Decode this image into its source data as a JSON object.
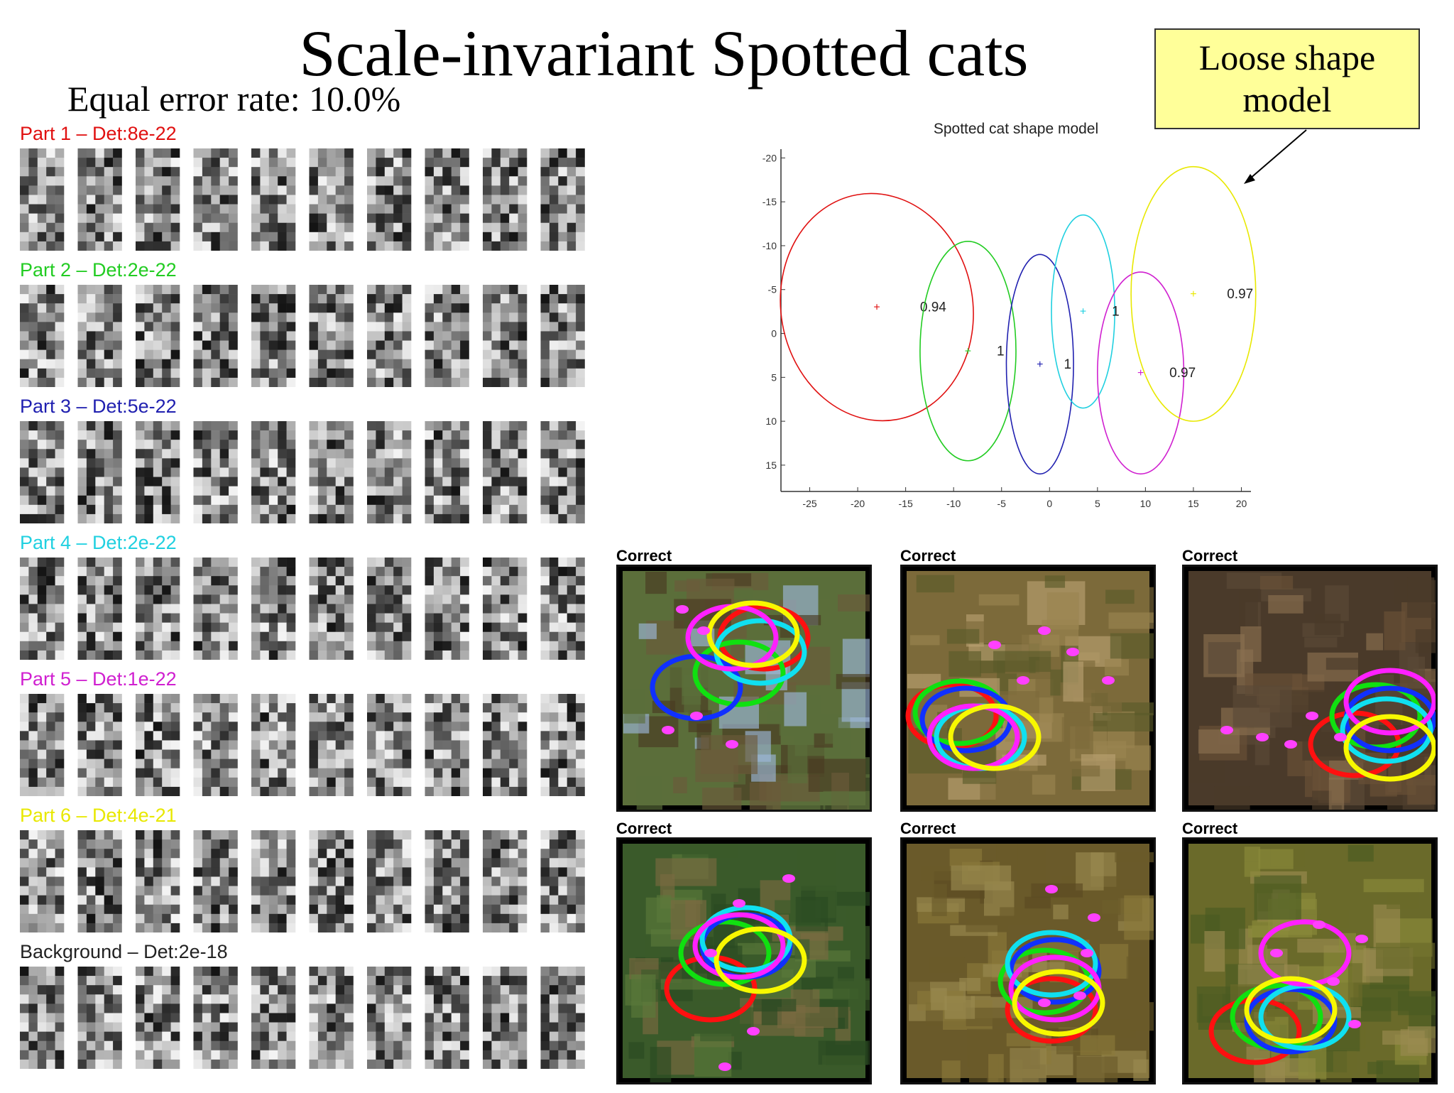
{
  "slide": {
    "title": "Scale-invariant Spotted cats",
    "subtitle": "Equal error rate: 10.0%",
    "callout": "Loose shape model"
  },
  "parts": [
    {
      "label": "Part 1 – Det:8e-22",
      "color": "#e01010"
    },
    {
      "label": "Part 2 – Det:2e-22",
      "color": "#22cc22"
    },
    {
      "label": "Part 3 – Det:5e-22",
      "color": "#2020b0"
    },
    {
      "label": "Part 4 – Det:2e-22",
      "color": "#20d0e0"
    },
    {
      "label": "Part 5 – Det:1e-22",
      "color": "#d020d0"
    },
    {
      "label": "Part 6 – Det:4e-21",
      "color": "#e8e800"
    },
    {
      "label": "Background – Det:2e-18",
      "color": "#222222"
    }
  ],
  "chart_data": {
    "type": "scatter",
    "title": "Spotted cat shape model",
    "xlabel": "",
    "ylabel": "",
    "xlim": [
      -28,
      21
    ],
    "ylim": [
      -21,
      18
    ],
    "y_inverted": true,
    "xticks": [
      -25,
      -20,
      -15,
      -10,
      -5,
      0,
      5,
      10,
      15,
      20
    ],
    "yticks": [
      -20,
      -15,
      -10,
      -5,
      0,
      5,
      10,
      15
    ],
    "grid": false,
    "series": [
      {
        "color": "#e01010",
        "mean": [
          -18,
          -3
        ],
        "ellipse": {
          "rx": 10,
          "ry": 13,
          "tilt": -10
        },
        "label": "0.94",
        "label_at": [
          -13.5,
          -3
        ]
      },
      {
        "color": "#22cc22",
        "mean": [
          -8.5,
          2
        ],
        "ellipse": {
          "rx": 5,
          "ry": 12.5,
          "tilt": 0
        },
        "label": "1",
        "label_at": [
          -5.5,
          2
        ]
      },
      {
        "color": "#2020b0",
        "mean": [
          -1,
          3.5
        ],
        "ellipse": {
          "rx": 3.5,
          "ry": 12.5,
          "tilt": 0
        },
        "label": "1",
        "label_at": [
          1.5,
          3.5
        ]
      },
      {
        "color": "#20d0e0",
        "mean": [
          3.5,
          -2.5
        ],
        "ellipse": {
          "rx": 3.3,
          "ry": 11,
          "tilt": 0
        },
        "label": "1",
        "label_at": [
          6.5,
          -2.5
        ]
      },
      {
        "color": "#d020d0",
        "mean": [
          9.5,
          4.5
        ],
        "ellipse": {
          "rx": 4.5,
          "ry": 11.5,
          "tilt": 0
        },
        "label": "0.97",
        "label_at": [
          12.5,
          4.5
        ]
      },
      {
        "color": "#e8e800",
        "mean": [
          15,
          -4.5
        ],
        "ellipse": {
          "rx": 6.5,
          "ry": 14.5,
          "tilt": 0
        },
        "label": "0.97",
        "label_at": [
          18.5,
          -4.5
        ]
      }
    ]
  },
  "detections": [
    {
      "label": "Correct"
    },
    {
      "label": "Correct"
    },
    {
      "label": "Correct"
    },
    {
      "label": "Correct"
    },
    {
      "label": "Correct"
    },
    {
      "label": "Correct"
    }
  ],
  "ring_colors": [
    "#ff1010",
    "#10e010",
    "#1030ff",
    "#10e0f0",
    "#ff20ff",
    "#f8f800"
  ],
  "keypoint_color": "#ff40ff"
}
